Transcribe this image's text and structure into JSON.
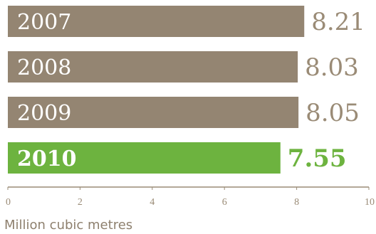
{
  "chart_data": {
    "type": "bar",
    "orientation": "horizontal",
    "categories": [
      "2007",
      "2008",
      "2009",
      "2010"
    ],
    "values": [
      8.21,
      8.03,
      8.05,
      7.55
    ],
    "value_labels": [
      "8.21",
      "8.03",
      "8.05",
      "7.55"
    ],
    "highlight": "2010",
    "xlim": [
      0,
      10
    ],
    "x_ticks": [
      "0",
      "2",
      "4",
      "6",
      "8",
      "10"
    ],
    "xlabel": "Million cubic metres",
    "ylabel": "",
    "title": "",
    "grid": false,
    "colors": {
      "bar": "#948572",
      "highlight": "#6db33f",
      "value_text": "#9a8b76",
      "axis": "#9a8b76"
    }
  }
}
